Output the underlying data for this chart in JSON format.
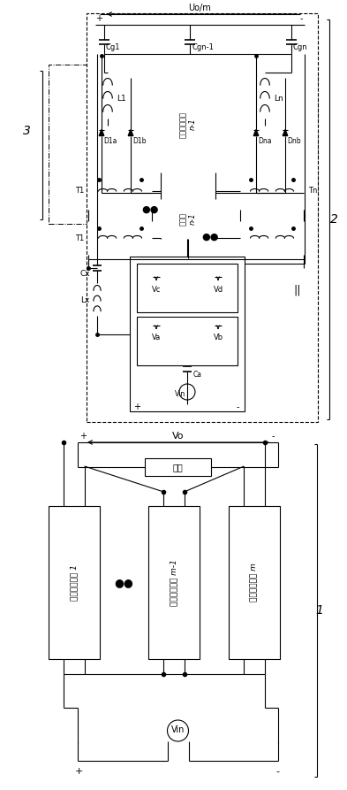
{
  "fig_width": 3.93,
  "fig_height": 8.93,
  "dpi": 100,
  "bg_color": "#ffffff",
  "lc": "#000000",
  "lw": 0.8,
  "Vo_label": "Vo",
  "Vin_label": "Vin",
  "load_label": "负载",
  "unit1_label": "全桥变换单元 1",
  "unit_m1_label": "全桥变换单元 m-1",
  "unit_m_label": "全桥变换单元 m",
  "label1": "1",
  "label2": "2",
  "label3": "3",
  "Uom_label": "Uo/m",
  "Cg1_label": "Cg1",
  "Cgn1_label": "Cgn-1",
  "Cgn_label": "Cgn",
  "L1_label": "L1",
  "Ln_label": "Ln",
  "D1a_label": "D1a",
  "D1b_label": "D1b",
  "Dna_label": "Dna",
  "Dnb_label": "Dnb",
  "rectifier_label": "全波整流单元\nn-1",
  "transformer_label": "变压器\nn-1",
  "T1_label": "T1",
  "Tn_label": "Tn",
  "Cx_label": "Cx",
  "Lx_label": "Lx",
  "Vc_label": "Vc",
  "Vd_label": "Vd",
  "Va_label": "Va",
  "Vb_label": "Vb",
  "Ca_label": "Ca",
  "Vin2_label": "Vin"
}
